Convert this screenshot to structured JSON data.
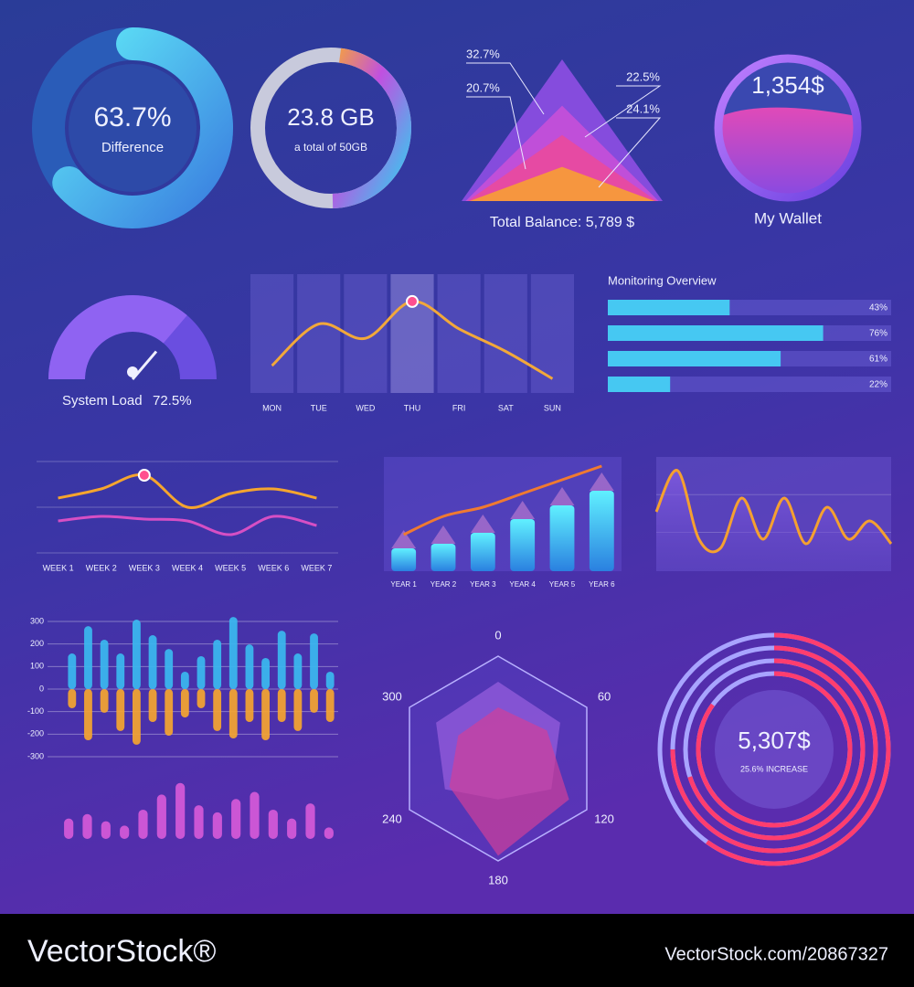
{
  "chart_data": [
    {
      "type": "donut",
      "values": [
        63.7
      ],
      "value_labels": [
        "63.7%"
      ],
      "subtitle": "Difference",
      "ylim": [
        0,
        100
      ],
      "color": "#3fc8f0"
    },
    {
      "type": "ring",
      "values": [
        23.8
      ],
      "value_labels": [
        "23.8 GB"
      ],
      "subtitle": "a total of 50GB",
      "ylim": [
        0,
        50
      ],
      "color": "#36c6f0"
    },
    {
      "type": "pyramid",
      "values": [
        32.7,
        20.7,
        22.5,
        24.1
      ],
      "value_labels": [
        "32.7%",
        "20.7%",
        "22.5%",
        "24.1%"
      ],
      "title": "Total Balance:  5,789 $",
      "colors": [
        "#8a4de0",
        "#c34fd8",
        "#e84aa0",
        "#f79a3a"
      ]
    },
    {
      "type": "wallet",
      "title": "1,354$",
      "subtitle": "My Wallet"
    },
    {
      "type": "gauge",
      "values": [
        72.5
      ],
      "value_labels": [
        "72.5%"
      ],
      "title": "System Load",
      "ylim": [
        0,
        100
      ],
      "color": "#8f63f2"
    },
    {
      "type": "line",
      "categories": [
        "MON",
        "TUE",
        "WED",
        "THU",
        "FRI",
        "SAT",
        "SUN"
      ],
      "values": [
        23,
        58,
        46,
        77,
        54,
        35,
        12
      ],
      "ylim": [
        0,
        100
      ],
      "color": "#f2a83a"
    },
    {
      "type": "hbar",
      "title": "Monitoring Overview",
      "values": [
        43,
        76,
        61,
        22
      ],
      "value_labels": [
        "43%",
        "76%",
        "61%",
        "22%"
      ],
      "xlim": [
        0,
        100
      ],
      "color": "#46c8f2"
    },
    {
      "type": "line",
      "categories": [
        "WEEK 1",
        "WEEK 2",
        "WEEK 3",
        "WEEK 4",
        "WEEK 5",
        "WEEK 6",
        "WEEK 7"
      ],
      "ylim": [
        0,
        100
      ],
      "series": [
        {
          "color": "#f5a52e",
          "values": [
            60,
            70,
            85,
            50,
            65,
            70,
            60
          ]
        },
        {
          "color": "#d64fc4",
          "values": [
            35,
            40,
            37,
            35,
            20,
            40,
            30
          ]
        }
      ]
    },
    {
      "type": "combo",
      "categories": [
        "YEAR 1",
        "YEAR 2",
        "YEAR 3",
        "YEAR 4",
        "YEAR 5",
        "YEAR 6"
      ],
      "ylim": [
        0,
        125
      ],
      "series": [
        {
          "type": "bar",
          "color": "#3fd0f0",
          "values": [
            25,
            30,
            42,
            57,
            72,
            88
          ]
        },
        {
          "type": "line",
          "color": "#f07a30",
          "values": [
            40,
            60,
            70,
            85,
            100,
            115
          ]
        }
      ]
    },
    {
      "type": "area",
      "values": [
        65,
        110,
        35,
        25,
        80,
        35,
        80,
        30,
        70,
        35,
        55,
        30
      ],
      "ylim": [
        0,
        125
      ],
      "color": "#f5a030"
    },
    {
      "type": "bar",
      "ylim": [
        -300,
        300
      ],
      "yticks": [
        300,
        200,
        100,
        0,
        -100,
        -200,
        -300
      ],
      "grid": true,
      "series": [
        {
          "color": "#3bb8f0",
          "values": [
            158,
            279,
            219,
            158,
            308,
            239,
            178,
            77,
            146,
            219,
            320,
            198,
            138,
            259,
            158,
            247,
            77
          ]
        },
        {
          "color": "#f5a530",
          "values": [
            -85,
            -227,
            -105,
            -186,
            -247,
            -146,
            -207,
            -126,
            -85,
            -186,
            -219,
            -146,
            -227,
            -146,
            -186,
            -105,
            -146
          ]
        }
      ]
    },
    {
      "type": "bar",
      "ylim": [
        0,
        70
      ],
      "values": [
        23,
        28,
        20,
        15,
        33,
        50,
        63,
        38,
        30,
        45,
        53,
        33,
        23,
        40,
        13
      ],
      "color": "#d65ad8"
    },
    {
      "type": "radar",
      "categories": [
        "0",
        "60",
        "120",
        "180",
        "240",
        "300"
      ],
      "ylim": [
        0,
        100
      ],
      "series": [
        {
          "color": "#9a60e0",
          "values": [
            75,
            70,
            60,
            40,
            60,
            70
          ]
        },
        {
          "color": "#d0409a",
          "values": [
            50,
            55,
            80,
            95,
            55,
            45
          ]
        }
      ]
    },
    {
      "type": "rings",
      "title": "5,307$",
      "subtitle": "25.6% INCREASE",
      "values": [
        60,
        75,
        70,
        85
      ],
      "ylim": [
        0,
        100
      ],
      "color": "#ff3d6e"
    }
  ],
  "footer": {
    "brand": "VectorStock®",
    "url": "VectorStock.com/20867327"
  }
}
